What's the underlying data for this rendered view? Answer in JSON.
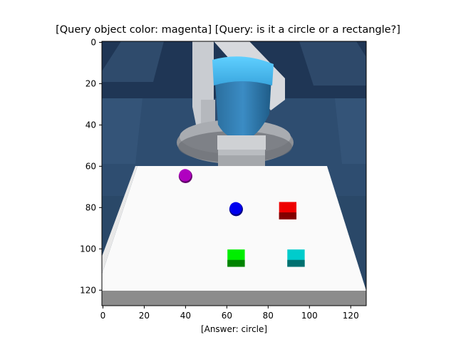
{
  "title": "[Query object color: magenta] [Query: is it a circle or a rectangle?]",
  "xlabel": "[Answer: circle]",
  "x_ticks": [
    "0",
    "20",
    "40",
    "60",
    "80",
    "100",
    "120"
  ],
  "y_ticks": [
    "0",
    "20",
    "40",
    "60",
    "80",
    "100",
    "120"
  ],
  "image_extent": {
    "x": [
      -0.5,
      127.5
    ],
    "y": [
      127.5,
      -0.5
    ]
  },
  "scene": {
    "objects": [
      {
        "name": "magenta-sphere",
        "shape": "circle",
        "color": "#b000c0",
        "center": [
          40,
          64.5
        ]
      },
      {
        "name": "blue-sphere",
        "shape": "circle",
        "color": "#0000ee",
        "center": [
          64.5,
          80.5
        ]
      },
      {
        "name": "red-cube",
        "shape": "rectangle",
        "color": "#ee0000",
        "center": [
          89.5,
          81.5
        ]
      },
      {
        "name": "green-cube",
        "shape": "rectangle",
        "color": "#00ee00",
        "center": [
          64.5,
          104.5
        ]
      },
      {
        "name": "cyan-cube",
        "shape": "rectangle",
        "color": "#00cccc",
        "center": [
          93.5,
          104.5
        ]
      }
    ]
  }
}
